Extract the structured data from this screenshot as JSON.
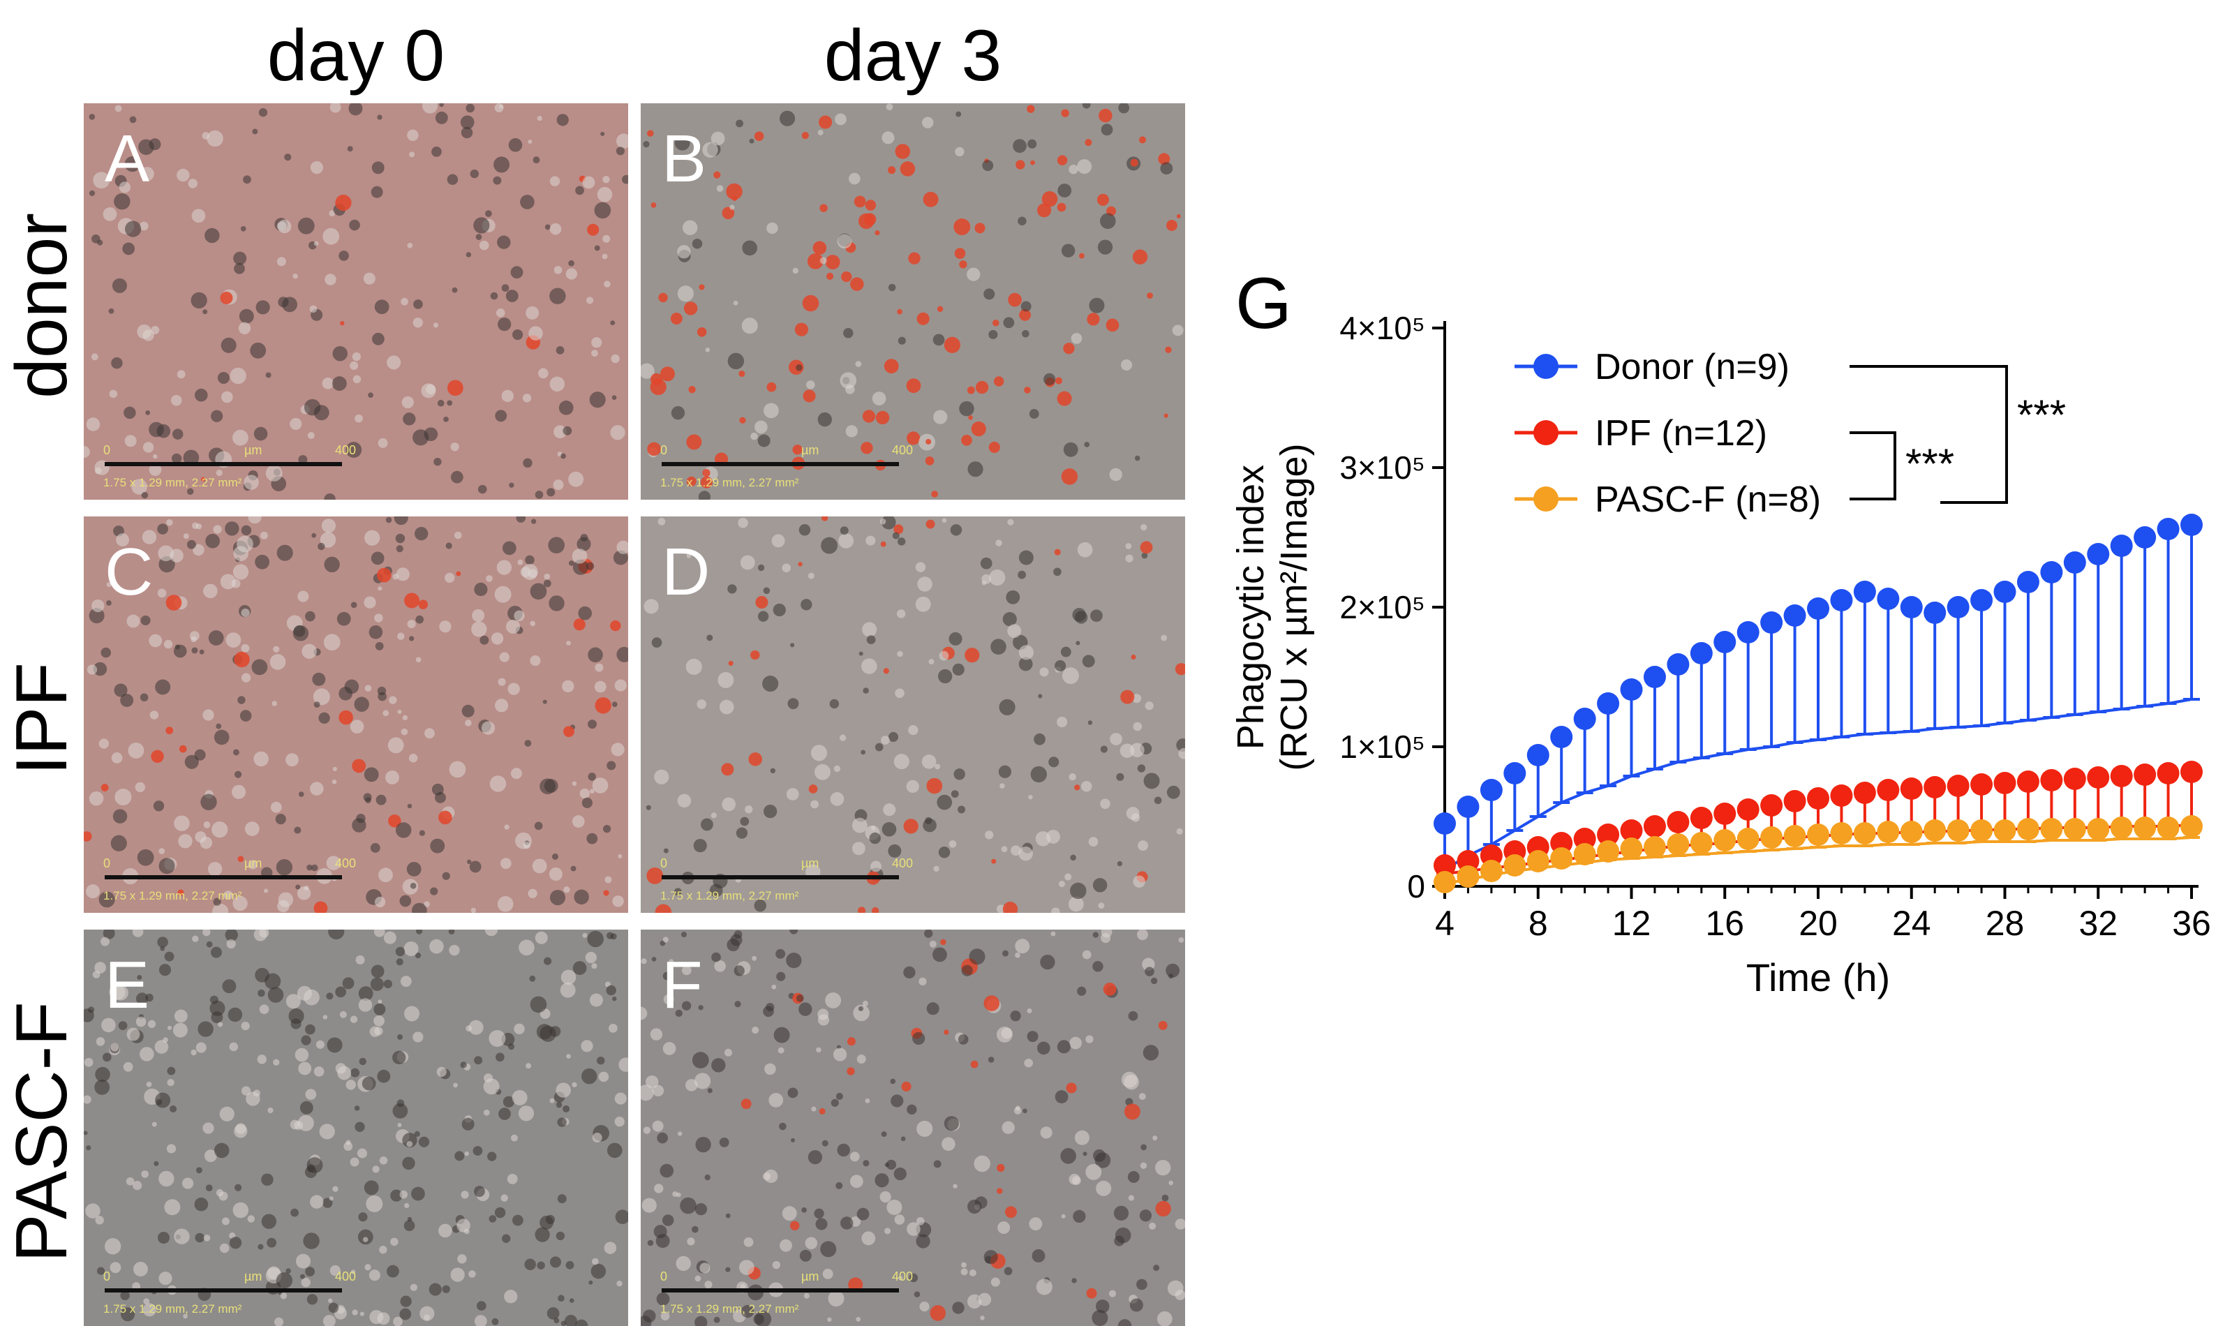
{
  "columns": {
    "day0": "day 0",
    "day3": "day 3"
  },
  "rows": {
    "donor": "donor",
    "ipf": "IPF",
    "pascf": "PASC-F"
  },
  "panels": {
    "A": {
      "letter": "A",
      "tint": "#b98d88"
    },
    "B": {
      "letter": "B",
      "tint": "#9a9490"
    },
    "C": {
      "letter": "C",
      "tint": "#b88e89"
    },
    "D": {
      "letter": "D",
      "tint": "#a19a96"
    },
    "E": {
      "letter": "E",
      "tint": "#8e8c8b"
    },
    "F": {
      "letter": "F",
      "tint": "#908d8c"
    }
  },
  "scalebar": {
    "zero": "0",
    "unit": "µm",
    "max": "400",
    "dims": "1.75 x 1.29 mm, 2.27 mm²"
  },
  "panel_g_label": "G",
  "chart_data": {
    "type": "line",
    "ylabel": [
      "Phagocytic index",
      "(RCU x µm²/Image)"
    ],
    "xlabel": "Time (h)",
    "xlim": [
      4,
      36
    ],
    "ylim": [
      0,
      400000
    ],
    "xticks": [
      4,
      8,
      12,
      16,
      20,
      24,
      28,
      32,
      36
    ],
    "yticks": [
      {
        "value": 0,
        "label": "0"
      },
      {
        "value": 100000,
        "label": "1×10⁵"
      },
      {
        "value": 200000,
        "label": "2×10⁵"
      },
      {
        "value": 300000,
        "label": "3×10⁵"
      },
      {
        "value": 400000,
        "label": "4×10⁵"
      }
    ],
    "x": [
      4,
      5,
      6,
      7,
      8,
      9,
      10,
      11,
      12,
      13,
      14,
      15,
      16,
      17,
      18,
      19,
      20,
      21,
      22,
      23,
      24,
      25,
      26,
      27,
      28,
      29,
      30,
      31,
      32,
      33,
      34,
      35,
      36
    ],
    "series": [
      {
        "name": "Donor (n=9)",
        "color": "#1e4ff0",
        "values": [
          45000,
          57000,
          69000,
          81000,
          94000,
          107000,
          120000,
          131000,
          141000,
          150000,
          159000,
          167000,
          175000,
          182000,
          189000,
          194000,
          199000,
          205000,
          211000,
          206000,
          200000,
          196000,
          200000,
          205000,
          211000,
          218000,
          225000,
          232000,
          238000,
          244000,
          250000,
          256000,
          259000
        ],
        "error_lower": [
          12000,
          22000,
          30000,
          40000,
          50000,
          60000,
          67000,
          72000,
          79000,
          84000,
          89000,
          92000,
          95000,
          98000,
          100000,
          103000,
          105000,
          107000,
          109000,
          110000,
          111000,
          113000,
          114000,
          115000,
          117000,
          119000,
          121000,
          123000,
          125000,
          127000,
          129000,
          131000,
          134000
        ]
      },
      {
        "name": "IPF (n=12)",
        "color": "#f02410",
        "values": [
          15000,
          18000,
          22000,
          25000,
          28000,
          31000,
          34000,
          37000,
          40000,
          43000,
          46000,
          49000,
          52000,
          55000,
          58000,
          61000,
          63000,
          65000,
          67000,
          69000,
          70000,
          71000,
          72000,
          73000,
          74000,
          75000,
          76000,
          77000,
          78000,
          79000,
          80000,
          81000,
          82000
        ],
        "error_lower": [
          9000,
          11000,
          13000,
          15000,
          17000,
          19000,
          21000,
          23000,
          25000,
          27000,
          29000,
          30000,
          31000,
          33000,
          34000,
          35000,
          36000,
          37000,
          38000,
          38000,
          39000,
          39000,
          40000,
          40000,
          41000,
          41000,
          42000,
          42000,
          42000,
          43000,
          43000,
          43000,
          44000
        ]
      },
      {
        "name": "PASC-F (n=8)",
        "color": "#f5a020",
        "values": [
          3000,
          7000,
          11000,
          15000,
          18000,
          20000,
          23000,
          25000,
          27000,
          28000,
          30000,
          31000,
          33000,
          34000,
          35000,
          36000,
          37000,
          38000,
          38000,
          39000,
          39000,
          40000,
          40000,
          40000,
          40000,
          41000,
          41000,
          41000,
          41000,
          42000,
          42000,
          42000,
          43000
        ],
        "error_lower": [
          2000,
          5000,
          8000,
          11000,
          13000,
          15000,
          17000,
          19000,
          20000,
          21000,
          22000,
          23000,
          24000,
          25000,
          26000,
          27000,
          28000,
          29000,
          29000,
          30000,
          30000,
          31000,
          31000,
          32000,
          32000,
          32000,
          33000,
          33000,
          33000,
          34000,
          34000,
          34000,
          35000
        ]
      }
    ],
    "annotations": [
      {
        "label": "***",
        "compares": [
          "Donor (n=9)",
          "PASC-F (n=8)"
        ]
      },
      {
        "label": "***",
        "compares": [
          "IPF (n=12)",
          "PASC-F (n=8)"
        ]
      }
    ],
    "legend": "top-left"
  }
}
